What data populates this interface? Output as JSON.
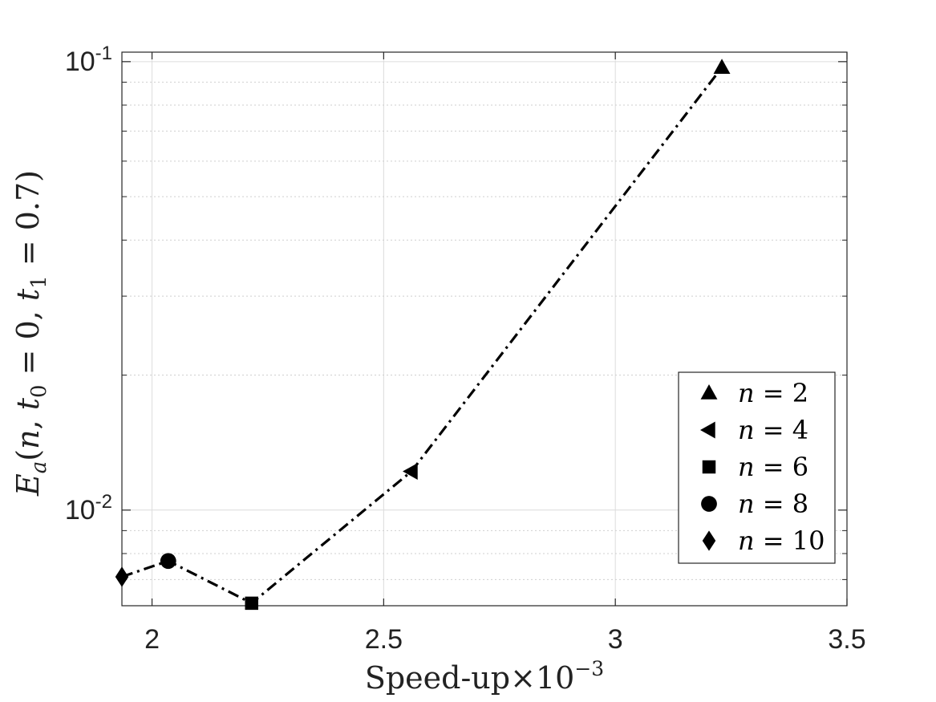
{
  "chart_data": {
    "type": "line",
    "xscale": "linear",
    "yscale": "log",
    "xlim": [
      1.935,
      3.5
    ],
    "ylim": [
      0.00612,
      0.105
    ],
    "grid": true,
    "line_style": "dash-dot",
    "line_color": "#000000",
    "x_ticks": [
      {
        "value": 2,
        "label": "2"
      },
      {
        "value": 2.5,
        "label": "2.5"
      },
      {
        "value": 3,
        "label": "3"
      },
      {
        "value": 3.5,
        "label": "3.5"
      }
    ],
    "y_ticks": [
      {
        "value": 0.01,
        "base": "10",
        "exp": "-2"
      },
      {
        "value": 0.1,
        "base": "10",
        "exp": "-1"
      }
    ],
    "xlabel": {
      "text": "Speed-up×10",
      "exp": "−3"
    },
    "ylabel": {
      "E": "E",
      "a": "a",
      "open": "(",
      "n": "n",
      "comma1": ", ",
      "t0": "t",
      "sub0": "0",
      "eq1": " = 0, ",
      "t1": "t",
      "sub1": "1",
      "eq2": " = 0.7",
      "close": ")"
    },
    "points": [
      {
        "name": "n = 2",
        "x": 3.23,
        "y": 0.097,
        "marker": "triangle-up"
      },
      {
        "name": "n = 4",
        "x": 2.56,
        "y": 0.0122,
        "marker": "triangle-left"
      },
      {
        "name": "n = 6",
        "x": 2.215,
        "y": 0.0062,
        "marker": "square"
      },
      {
        "name": "n = 8",
        "x": 2.035,
        "y": 0.0077,
        "marker": "circle"
      },
      {
        "name": "n = 10",
        "x": 1.935,
        "y": 0.0071,
        "marker": "diamond"
      }
    ],
    "legend": {
      "position": "right",
      "entries": [
        {
          "var": "n",
          "rest": " = 2",
          "marker": "triangle-up"
        },
        {
          "var": "n",
          "rest": " = 4",
          "marker": "triangle-left"
        },
        {
          "var": "n",
          "rest": " = 6",
          "marker": "square"
        },
        {
          "var": "n",
          "rest": " = 8",
          "marker": "circle"
        },
        {
          "var": "n",
          "rest": " = 10",
          "marker": "diamond"
        }
      ]
    }
  }
}
